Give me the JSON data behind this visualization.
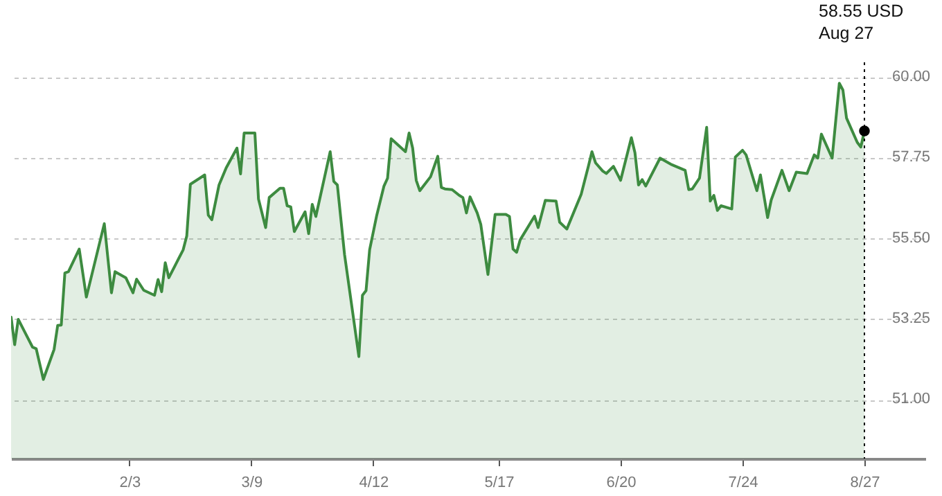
{
  "chart_data": {
    "type": "area",
    "x": [
      "--01-01",
      "--01-02",
      "--01-03",
      "--01-05",
      "--01-07",
      "--01-08",
      "--01-10",
      "--01-13",
      "--01-14",
      "--01-15",
      "--01-16",
      "--01-17",
      "--01-20",
      "--01-22",
      "--01-23",
      "--01-27",
      "--01-29",
      "--01-30",
      "--02-02",
      "--02-04",
      "--02-05",
      "--02-07",
      "--02-10",
      "--02-11",
      "--02-12",
      "--02-13",
      "--02-14",
      "--02-18",
      "--02-19",
      "--02-20",
      "--02-24",
      "--02-25",
      "--02-26",
      "--02-28",
      "--03-02",
      "--03-05",
      "--03-06",
      "--03-07",
      "--03-10",
      "--03-11",
      "--03-13",
      "--03-14",
      "--03-17",
      "--03-18",
      "--03-19",
      "--03-20",
      "--03-21",
      "--03-24",
      "--03-25",
      "--03-26",
      "--03-27",
      "--03-31",
      "--04-01",
      "--04-02",
      "--04-04",
      "--04-08",
      "--04-09",
      "--04-10",
      "--04-11",
      "--04-13",
      "--04-15",
      "--04-16",
      "--04-17",
      "--04-21",
      "--04-22",
      "--04-23",
      "--04-24",
      "--04-25",
      "--04-28",
      "--04-30",
      "--05-01",
      "--05-02",
      "--05-04",
      "--05-06",
      "--05-07",
      "--05-08",
      "--05-09",
      "--05-11",
      "--05-12",
      "--05-14",
      "--05-16",
      "--05-19",
      "--05-20",
      "--05-21",
      "--05-22",
      "--05-23",
      "--05-27",
      "--05-28",
      "--05-30",
      "--06-02",
      "--06-03",
      "--06-05",
      "--06-09",
      "--06-11",
      "--06-12",
      "--06-13",
      "--06-15",
      "--06-16",
      "--06-18",
      "--06-20",
      "--06-23",
      "--06-24",
      "--06-25",
      "--06-26",
      "--06-27",
      "--07-01",
      "--07-04",
      "--07-08",
      "--07-09",
      "--07-10",
      "--07-12",
      "--07-14",
      "--07-15",
      "--07-16",
      "--07-17",
      "--07-18",
      "--07-21",
      "--07-22",
      "--07-24",
      "--07-25",
      "--07-28",
      "--07-29",
      "--07-31",
      "--08-01",
      "--08-04",
      "--08-06",
      "--08-08",
      "--08-11",
      "--08-13",
      "--08-14",
      "--08-15",
      "--08-18",
      "--08-20",
      "--08-21",
      "--08-22",
      "--08-25",
      "--08-26",
      "--08-27"
    ],
    "series": [
      {
        "color": "#3d8b40",
        "values": [
          53.35,
          52.58,
          53.29,
          52.9,
          52.51,
          52.47,
          51.61,
          52.45,
          53.12,
          53.13,
          54.58,
          54.62,
          55.25,
          53.91,
          54.32,
          55.96,
          54.03,
          54.62,
          54.45,
          54.03,
          54.41,
          54.1,
          53.96,
          54.4,
          54.06,
          54.87,
          54.45,
          55.23,
          55.62,
          57.06,
          57.32,
          56.2,
          56.07,
          57.04,
          57.52,
          58.07,
          57.35,
          58.49,
          58.49,
          56.65,
          55.85,
          56.69,
          56.95,
          56.95,
          56.46,
          56.43,
          55.74,
          56.29,
          55.68,
          56.5,
          56.16,
          57.97,
          57.14,
          57.04,
          55.1,
          52.25,
          53.96,
          54.09,
          55.23,
          56.2,
          57.01,
          57.23,
          58.33,
          57.97,
          58.49,
          58.07,
          57.17,
          56.88,
          57.27,
          57.84,
          56.97,
          56.93,
          56.91,
          56.75,
          56.69,
          56.26,
          56.71,
          56.26,
          55.94,
          54.54,
          56.22,
          56.22,
          56.16,
          55.25,
          55.16,
          55.51,
          56.17,
          55.85,
          56.61,
          56.59,
          56.0,
          55.81,
          56.78,
          57.56,
          57.97,
          57.66,
          57.43,
          57.36,
          57.56,
          57.17,
          58.36,
          57.94,
          57.04,
          57.19,
          57.01,
          57.79,
          57.62,
          57.45,
          56.91,
          56.93,
          57.23,
          58.65,
          56.59,
          56.75,
          56.33,
          56.46,
          56.37,
          57.82,
          58.01,
          57.88,
          56.88,
          57.32,
          56.13,
          56.62,
          57.45,
          56.88,
          57.4,
          57.36,
          57.88,
          57.79,
          58.46,
          57.79,
          59.88,
          59.69,
          58.91,
          58.23,
          58.1,
          58.55
        ]
      },
      {
        "type": "scatter",
        "color": "#000000",
        "marker": "circle",
        "x": [
          "--08-27"
        ],
        "values": [
          58.55
        ]
      }
    ],
    "xlim": [
      "--01-01",
      "--09-13"
    ],
    "xticks": [
      {
        "value": "--02-03",
        "label": "2/3"
      },
      {
        "value": "--03-09",
        "label": "3/9"
      },
      {
        "value": "--04-12",
        "label": "4/12"
      },
      {
        "value": "--05-17",
        "label": "5/17"
      },
      {
        "value": "--06-20",
        "label": "6/20"
      },
      {
        "value": "--07-24",
        "label": "7/24"
      },
      {
        "value": "--08-27",
        "label": "8/27"
      }
    ],
    "ylim": [
      49.4,
      60
    ],
    "yticks": [
      {
        "value": 51,
        "label": "51.00"
      },
      {
        "value": 53.25,
        "label": "53.25"
      },
      {
        "value": 55.5,
        "label": "55.50"
      },
      {
        "value": 57.75,
        "label": "57.75"
      },
      {
        "value": 60,
        "label": "60.00"
      }
    ],
    "grid": "y",
    "ref_lines": [
      {
        "axis": "x",
        "value": "--08-27",
        "line_style": "dotted",
        "color": "#000000"
      }
    ],
    "annotations": [
      "58.55 USD\nAug 27"
    ]
  }
}
